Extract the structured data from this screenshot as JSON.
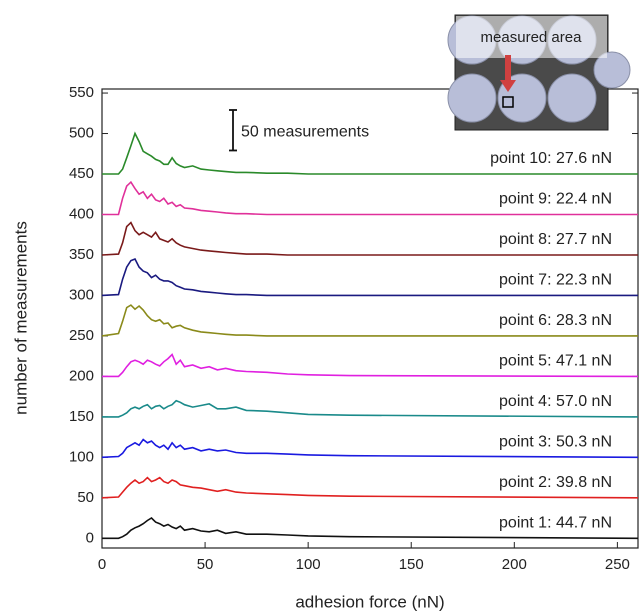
{
  "chart_data": {
    "type": "line",
    "xlabel": "adhesion force (nN)",
    "ylabel": "number of measurements",
    "xlim": [
      0,
      260
    ],
    "ylim": [
      -12,
      555
    ],
    "xticks": [
      0,
      50,
      100,
      150,
      200,
      250
    ],
    "yticks": [
      0,
      50,
      100,
      150,
      200,
      250,
      300,
      350,
      400,
      450,
      500,
      550
    ],
    "scale_bar": {
      "label": "50 measurements",
      "value": 50
    },
    "inset_label": "measured area",
    "x": [
      0,
      8,
      10,
      12,
      14,
      16,
      18,
      20,
      22,
      24,
      26,
      28,
      30,
      32,
      34,
      36,
      38,
      40,
      44,
      48,
      52,
      56,
      60,
      65,
      70,
      80,
      90,
      100,
      120,
      260
    ],
    "series": [
      {
        "name": "point 1: 44.7 nN",
        "color": "#111111",
        "values": [
          0,
          0,
          2,
          5,
          10,
          13,
          15,
          18,
          22,
          25,
          20,
          18,
          15,
          17,
          14,
          12,
          15,
          10,
          12,
          9,
          8,
          10,
          6,
          8,
          5,
          5,
          4,
          3,
          2,
          0
        ]
      },
      {
        "name": "point 2: 39.8 nN",
        "color": "#e02020",
        "values": [
          50,
          51,
          57,
          63,
          68,
          72,
          68,
          70,
          75,
          70,
          72,
          75,
          70,
          68,
          72,
          70,
          66,
          65,
          63,
          62,
          60,
          58,
          60,
          57,
          56,
          55,
          54,
          53,
          52,
          50
        ]
      },
      {
        "name": "point 3: 50.3 nN",
        "color": "#1a1ae0",
        "values": [
          100,
          101,
          105,
          112,
          115,
          118,
          115,
          122,
          118,
          120,
          115,
          112,
          115,
          110,
          118,
          112,
          115,
          110,
          112,
          108,
          110,
          108,
          109,
          106,
          105,
          105,
          104,
          103,
          102,
          100
        ]
      },
      {
        "name": "point 4: 57.0 nN",
        "color": "#1a8a8a",
        "values": [
          150,
          150,
          152,
          155,
          160,
          162,
          160,
          163,
          165,
          160,
          163,
          164,
          160,
          163,
          165,
          170,
          168,
          165,
          162,
          164,
          166,
          160,
          160,
          162,
          158,
          157,
          155,
          153,
          152,
          150
        ]
      },
      {
        "name": "point 5: 47.1 nN",
        "color": "#e020e0",
        "values": [
          200,
          200,
          205,
          212,
          218,
          220,
          218,
          215,
          220,
          218,
          215,
          213,
          218,
          222,
          227,
          215,
          220,
          212,
          214,
          210,
          212,
          208,
          210,
          207,
          206,
          205,
          203,
          202,
          201,
          200
        ]
      },
      {
        "name": "point 6: 28.3 nN",
        "color": "#8a8a1a",
        "values": [
          250,
          253,
          268,
          285,
          288,
          283,
          287,
          282,
          275,
          270,
          268,
          270,
          265,
          266,
          260,
          262,
          263,
          260,
          257,
          255,
          254,
          253,
          252,
          251,
          251,
          250,
          250,
          250,
          250,
          250
        ]
      },
      {
        "name": "point 7: 22.3 nN",
        "color": "#1a1a80",
        "values": [
          300,
          301,
          320,
          335,
          343,
          345,
          335,
          330,
          328,
          322,
          325,
          320,
          318,
          318,
          316,
          312,
          310,
          308,
          307,
          305,
          304,
          303,
          302,
          301,
          301,
          300,
          300,
          300,
          300,
          300
        ]
      },
      {
        "name": "point 8: 27.7 nN",
        "color": "#7a1a1a",
        "values": [
          350,
          351,
          365,
          385,
          390,
          380,
          375,
          378,
          375,
          372,
          378,
          370,
          368,
          366,
          370,
          365,
          362,
          360,
          358,
          356,
          355,
          354,
          353,
          352,
          351,
          351,
          350,
          350,
          350,
          350
        ]
      },
      {
        "name": "point 9: 22.4 nN",
        "color": "#e0309a",
        "values": [
          400,
          400,
          420,
          435,
          440,
          432,
          425,
          428,
          420,
          425,
          418,
          416,
          420,
          413,
          415,
          410,
          412,
          408,
          407,
          405,
          404,
          403,
          402,
          401,
          401,
          400,
          400,
          400,
          400,
          400
        ]
      },
      {
        "name": "point 10: 27.6 nN",
        "color": "#2a8a2a",
        "values": [
          450,
          450,
          456,
          470,
          485,
          500,
          490,
          478,
          475,
          472,
          468,
          466,
          462,
          462,
          470,
          463,
          460,
          458,
          460,
          456,
          455,
          454,
          453,
          452,
          452,
          451,
          451,
          450,
          450,
          450
        ]
      }
    ]
  }
}
